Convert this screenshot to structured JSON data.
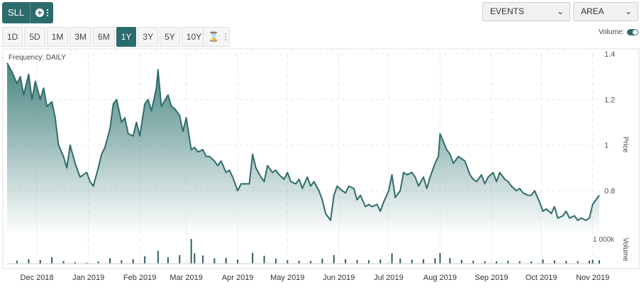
{
  "ticker": {
    "symbol": "SLL"
  },
  "toolbar": {
    "events_label": "EVENTS",
    "chart_type_label": "AREA",
    "ranges": [
      "1D",
      "5D",
      "1M",
      "3M",
      "6M",
      "1Y",
      "3Y",
      "5Y",
      "10Y"
    ],
    "active_range": "1Y",
    "volume_label": "Volume:",
    "volume_on": true
  },
  "chart_data": {
    "type": "area",
    "frequency_label": "Frequency: DAILY",
    "ylabel": "Price",
    "ylim": [
      0.62,
      1.4
    ],
    "yticks": [
      0.8,
      1,
      1.2,
      1.4
    ],
    "ytick_labels": [
      "0.8",
      "1",
      "1.2",
      "1.4"
    ],
    "volume_label": "Volume",
    "volume_tick_label": "1 000k",
    "volume_ylim": [
      0,
      1150
    ],
    "x_months": [
      "Dec 2018",
      "Jan 2019",
      "Feb 2019",
      "Mar 2019",
      "Apr 2019",
      "May 2019",
      "Jun 2019",
      "Jul 2019",
      "Aug 2019",
      "Sep 2019",
      "Oct 2019",
      "Nov 2019"
    ],
    "x_start": "2018-11-13",
    "x_end": "2019-11-05",
    "grid": true,
    "colors": {
      "line": "#2f6d69",
      "fill_top": "#3f7f7b",
      "bar": "#2f5f5d"
    },
    "price_series": [
      [
        "2018-11-13",
        1.36
      ],
      [
        "2018-11-16",
        1.32
      ],
      [
        "2018-11-19",
        1.27
      ],
      [
        "2018-11-21",
        1.3
      ],
      [
        "2018-11-23",
        1.22
      ],
      [
        "2018-11-26",
        1.31
      ],
      [
        "2018-11-28",
        1.2
      ],
      [
        "2018-11-30",
        1.28
      ],
      [
        "2018-12-03",
        1.2
      ],
      [
        "2018-12-05",
        1.25
      ],
      [
        "2018-12-07",
        1.17
      ],
      [
        "2018-12-10",
        1.19
      ],
      [
        "2018-12-12",
        1.12
      ],
      [
        "2018-12-14",
        1.0
      ],
      [
        "2018-12-17",
        0.95
      ],
      [
        "2018-12-19",
        0.9
      ],
      [
        "2018-12-21",
        1.0
      ],
      [
        "2018-12-24",
        0.92
      ],
      [
        "2018-12-27",
        0.86
      ],
      [
        "2018-12-31",
        0.88
      ],
      [
        "2019-01-02",
        0.84
      ],
      [
        "2019-01-04",
        0.82
      ],
      [
        "2019-01-07",
        0.9
      ],
      [
        "2019-01-09",
        0.96
      ],
      [
        "2019-01-11",
        0.99
      ],
      [
        "2019-01-14",
        1.07
      ],
      [
        "2019-01-16",
        1.18
      ],
      [
        "2019-01-18",
        1.2
      ],
      [
        "2019-01-21",
        1.1
      ],
      [
        "2019-01-23",
        1.12
      ],
      [
        "2019-01-25",
        1.05
      ],
      [
        "2019-01-28",
        1.04
      ],
      [
        "2019-01-30",
        1.1
      ],
      [
        "2019-02-01",
        1.04
      ],
      [
        "2019-02-04",
        1.18
      ],
      [
        "2019-02-06",
        1.2
      ],
      [
        "2019-02-08",
        1.15
      ],
      [
        "2019-02-11",
        1.25
      ],
      [
        "2019-02-12",
        1.33
      ],
      [
        "2019-02-14",
        1.17
      ],
      [
        "2019-02-18",
        1.22
      ],
      [
        "2019-02-20",
        1.17
      ],
      [
        "2019-02-22",
        1.16
      ],
      [
        "2019-02-25",
        1.13
      ],
      [
        "2019-02-27",
        1.06
      ],
      [
        "2019-03-01",
        1.12
      ],
      [
        "2019-03-04",
        0.98
      ],
      [
        "2019-03-06",
        0.99
      ],
      [
        "2019-03-08",
        0.97
      ],
      [
        "2019-03-11",
        0.98
      ],
      [
        "2019-03-13",
        0.95
      ],
      [
        "2019-03-15",
        0.95
      ],
      [
        "2019-03-18",
        0.93
      ],
      [
        "2019-03-20",
        0.91
      ],
      [
        "2019-03-22",
        0.93
      ],
      [
        "2019-03-25",
        0.88
      ],
      [
        "2019-03-27",
        0.89
      ],
      [
        "2019-03-29",
        0.86
      ],
      [
        "2019-04-01",
        0.8
      ],
      [
        "2019-04-03",
        0.83
      ],
      [
        "2019-04-05",
        0.83
      ],
      [
        "2019-04-08",
        0.83
      ],
      [
        "2019-04-10",
        0.96
      ],
      [
        "2019-04-12",
        0.9
      ],
      [
        "2019-04-15",
        0.86
      ],
      [
        "2019-04-17",
        0.84
      ],
      [
        "2019-04-19",
        0.91
      ],
      [
        "2019-04-22",
        0.88
      ],
      [
        "2019-04-24",
        0.89
      ],
      [
        "2019-04-26",
        0.87
      ],
      [
        "2019-04-29",
        0.85
      ],
      [
        "2019-05-01",
        0.88
      ],
      [
        "2019-05-03",
        0.84
      ],
      [
        "2019-05-06",
        0.83
      ],
      [
        "2019-05-08",
        0.85
      ],
      [
        "2019-05-10",
        0.81
      ],
      [
        "2019-05-13",
        0.86
      ],
      [
        "2019-05-15",
        0.82
      ],
      [
        "2019-05-17",
        0.84
      ],
      [
        "2019-05-20",
        0.8
      ],
      [
        "2019-05-22",
        0.76
      ],
      [
        "2019-05-24",
        0.7
      ],
      [
        "2019-05-27",
        0.67
      ],
      [
        "2019-05-29",
        0.78
      ],
      [
        "2019-05-31",
        0.82
      ],
      [
        "2019-06-03",
        0.8
      ],
      [
        "2019-06-05",
        0.79
      ],
      [
        "2019-06-07",
        0.82
      ],
      [
        "2019-06-10",
        0.81
      ],
      [
        "2019-06-12",
        0.76
      ],
      [
        "2019-06-14",
        0.78
      ],
      [
        "2019-06-17",
        0.73
      ],
      [
        "2019-06-19",
        0.74
      ],
      [
        "2019-06-21",
        0.73
      ],
      [
        "2019-06-24",
        0.74
      ],
      [
        "2019-06-26",
        0.71
      ],
      [
        "2019-06-28",
        0.75
      ],
      [
        "2019-07-01",
        0.8
      ],
      [
        "2019-07-03",
        0.87
      ],
      [
        "2019-07-05",
        0.77
      ],
      [
        "2019-07-08",
        0.8
      ],
      [
        "2019-07-10",
        0.88
      ],
      [
        "2019-07-12",
        0.87
      ],
      [
        "2019-07-15",
        0.88
      ],
      [
        "2019-07-17",
        0.86
      ],
      [
        "2019-07-19",
        0.82
      ],
      [
        "2019-07-22",
        0.86
      ],
      [
        "2019-07-24",
        0.81
      ],
      [
        "2019-07-26",
        0.86
      ],
      [
        "2019-07-29",
        0.92
      ],
      [
        "2019-07-31",
        0.95
      ],
      [
        "2019-08-01",
        1.05
      ],
      [
        "2019-08-05",
        0.98
      ],
      [
        "2019-08-07",
        0.96
      ],
      [
        "2019-08-09",
        0.92
      ],
      [
        "2019-08-12",
        0.95
      ],
      [
        "2019-08-14",
        0.94
      ],
      [
        "2019-08-16",
        0.93
      ],
      [
        "2019-08-19",
        0.87
      ],
      [
        "2019-08-21",
        0.85
      ],
      [
        "2019-08-23",
        0.84
      ],
      [
        "2019-08-26",
        0.87
      ],
      [
        "2019-08-28",
        0.83
      ],
      [
        "2019-08-30",
        0.86
      ],
      [
        "2019-09-02",
        0.88
      ],
      [
        "2019-09-04",
        0.84
      ],
      [
        "2019-09-06",
        0.88
      ],
      [
        "2019-09-09",
        0.85
      ],
      [
        "2019-09-11",
        0.84
      ],
      [
        "2019-09-13",
        0.82
      ],
      [
        "2019-09-16",
        0.8
      ],
      [
        "2019-09-18",
        0.81
      ],
      [
        "2019-09-20",
        0.79
      ],
      [
        "2019-09-23",
        0.78
      ],
      [
        "2019-09-25",
        0.78
      ],
      [
        "2019-09-27",
        0.8
      ],
      [
        "2019-09-30",
        0.75
      ],
      [
        "2019-10-02",
        0.71
      ],
      [
        "2019-10-04",
        0.72
      ],
      [
        "2019-10-07",
        0.7
      ],
      [
        "2019-10-09",
        0.73
      ],
      [
        "2019-10-11",
        0.68
      ],
      [
        "2019-10-14",
        0.69
      ],
      [
        "2019-10-16",
        0.71
      ],
      [
        "2019-10-18",
        0.68
      ],
      [
        "2019-10-21",
        0.69
      ],
      [
        "2019-10-23",
        0.67
      ],
      [
        "2019-10-25",
        0.68
      ],
      [
        "2019-10-28",
        0.67
      ],
      [
        "2019-10-30",
        0.68
      ],
      [
        "2019-11-01",
        0.74
      ],
      [
        "2019-11-05",
        0.78
      ]
    ],
    "volume_series": [
      [
        "2018-11-19",
        120
      ],
      [
        "2018-11-26",
        180
      ],
      [
        "2018-12-03",
        150
      ],
      [
        "2018-12-10",
        260
      ],
      [
        "2018-12-17",
        110
      ],
      [
        "2018-12-24",
        60
      ],
      [
        "2018-12-31",
        40
      ],
      [
        "2019-01-07",
        90
      ],
      [
        "2019-01-14",
        220
      ],
      [
        "2019-01-21",
        140
      ],
      [
        "2019-01-28",
        180
      ],
      [
        "2019-02-04",
        300
      ],
      [
        "2019-02-12",
        520
      ],
      [
        "2019-02-18",
        260
      ],
      [
        "2019-02-25",
        350
      ],
      [
        "2019-03-04",
        1000
      ],
      [
        "2019-03-06",
        420
      ],
      [
        "2019-03-11",
        330
      ],
      [
        "2019-03-18",
        220
      ],
      [
        "2019-03-25",
        240
      ],
      [
        "2019-04-01",
        160
      ],
      [
        "2019-04-10",
        440
      ],
      [
        "2019-04-17",
        320
      ],
      [
        "2019-04-24",
        200
      ],
      [
        "2019-05-01",
        140
      ],
      [
        "2019-05-08",
        120
      ],
      [
        "2019-05-15",
        110
      ],
      [
        "2019-05-22",
        200
      ],
      [
        "2019-05-29",
        350
      ],
      [
        "2019-06-05",
        180
      ],
      [
        "2019-06-12",
        150
      ],
      [
        "2019-06-19",
        140
      ],
      [
        "2019-06-26",
        170
      ],
      [
        "2019-07-03",
        420
      ],
      [
        "2019-07-08",
        210
      ],
      [
        "2019-07-15",
        160
      ],
      [
        "2019-07-22",
        180
      ],
      [
        "2019-07-29",
        220
      ],
      [
        "2019-08-01",
        430
      ],
      [
        "2019-08-07",
        230
      ],
      [
        "2019-08-14",
        150
      ],
      [
        "2019-08-21",
        120
      ],
      [
        "2019-08-28",
        100
      ],
      [
        "2019-09-04",
        90
      ],
      [
        "2019-09-11",
        120
      ],
      [
        "2019-09-18",
        100
      ],
      [
        "2019-09-25",
        90
      ],
      [
        "2019-10-02",
        170
      ],
      [
        "2019-10-09",
        130
      ],
      [
        "2019-10-16",
        110
      ],
      [
        "2019-10-23",
        100
      ],
      [
        "2019-10-30",
        120
      ],
      [
        "2019-11-01",
        160
      ],
      [
        "2019-11-05",
        140
      ]
    ]
  }
}
